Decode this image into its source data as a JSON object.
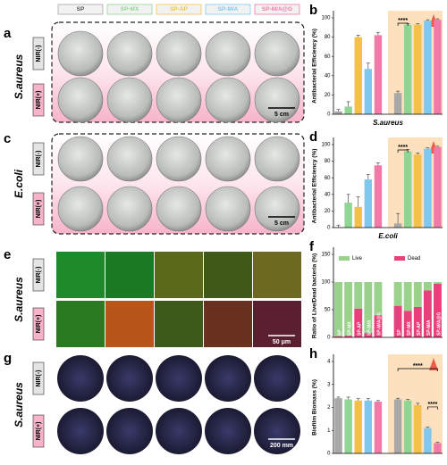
{
  "groups": [
    "SP",
    "SP-MX",
    "SP-AP",
    "SP-M/A",
    "SP-M/A@G"
  ],
  "panels": [
    {
      "label": "a",
      "species": "S.aureus",
      "rows": [
        "NIR(-)",
        "NIR(+)"
      ],
      "scale_bar": "5 cm"
    },
    {
      "label": "c",
      "species": "E.coli",
      "rows": [
        "NIR(-)",
        "NIR(+)"
      ],
      "scale_bar": "5 cm"
    },
    {
      "label": "e",
      "species": "S.aureus",
      "rows": [
        "NIR(-)",
        "NIR(+)"
      ],
      "scale_bar": "50 μm"
    },
    {
      "label": "g",
      "species": "S.aureus",
      "rows": [
        "NIR(-)",
        "NIR(+)"
      ],
      "scale_bar": "200 mm"
    }
  ],
  "chart_data": [
    {
      "label": "b",
      "type": "bar",
      "ylabel": "Antibacterial Efficiency (%)",
      "xlabel": "S.aureus",
      "categories": [
        null,
        null,
        null,
        null,
        null,
        null,
        null,
        null,
        null,
        null
      ],
      "values": [
        3,
        8,
        80,
        47,
        82,
        22,
        93,
        93,
        97,
        98
      ],
      "errors": [
        2,
        5,
        2,
        6,
        3,
        2,
        1,
        1,
        1,
        1
      ],
      "colors": [
        "#a8a8a8",
        "#8fd694",
        "#f5c04a",
        "#7ec8f0",
        "#f07aa8",
        "#a8a8a8",
        "#8fd694",
        "#f5c04a",
        "#7ec8f0",
        "#f07aa8"
      ],
      "ylim": [
        0,
        100
      ],
      "yticks": [
        0,
        20,
        40,
        60,
        80,
        100
      ],
      "annotations": [
        "****"
      ]
    },
    {
      "label": "d",
      "type": "bar",
      "ylabel": "Antibacterial Efficiency (%)",
      "xlabel": "E.coli",
      "categories": [
        null,
        null,
        null,
        null,
        null,
        null,
        null,
        null,
        null,
        null
      ],
      "values": [
        0,
        30,
        25,
        58,
        75,
        5,
        92,
        88,
        95,
        97
      ],
      "errors": [
        3,
        10,
        12,
        6,
        3,
        12,
        2,
        2,
        1,
        1
      ],
      "colors": [
        "#a8a8a8",
        "#8fd694",
        "#f5c04a",
        "#7ec8f0",
        "#f07aa8",
        "#a8a8a8",
        "#8fd694",
        "#f5c04a",
        "#7ec8f0",
        "#f07aa8"
      ],
      "ylim": [
        0,
        100
      ],
      "yticks": [
        0,
        20,
        40,
        60,
        80,
        100
      ],
      "annotations": [
        "****"
      ]
    },
    {
      "label": "f",
      "type": "stacked_bar",
      "ylabel": "Ratio of Live/Dead bacteria (%)",
      "categories": [
        "SP",
        "SP-MX",
        "SP-AP",
        "SP-M/A",
        "SP-M/A@G",
        "SP",
        "SP-MX",
        "SP-AP",
        "SP-M/A",
        "SP-M/A@G"
      ],
      "series": [
        {
          "name": "Live",
          "color": "#9ad18b",
          "values": [
            98,
            97,
            48,
            92,
            60,
            43,
            52,
            45,
            15,
            3
          ]
        },
        {
          "name": "Dead",
          "color": "#e8407a",
          "values": [
            2,
            3,
            52,
            8,
            40,
            57,
            48,
            55,
            85,
            97
          ]
        }
      ],
      "ylim": [
        0,
        150
      ],
      "yticks": [
        0,
        50,
        100,
        150
      ],
      "legend": "top"
    },
    {
      "label": "h",
      "type": "bar",
      "ylabel": "Biofilm Biomass (%)",
      "categories": [
        null,
        null,
        null,
        null,
        null,
        null,
        null,
        null,
        null,
        null
      ],
      "values": [
        2.4,
        2.35,
        2.3,
        2.3,
        2.25,
        2.35,
        2.3,
        2.1,
        1.1,
        0.45
      ],
      "errors": [
        0.05,
        0.1,
        0.08,
        0.08,
        0.05,
        0.05,
        0.05,
        0.08,
        0.05,
        0.04
      ],
      "colors": [
        "#a8a8a8",
        "#8fd694",
        "#f5c04a",
        "#7ec8f0",
        "#f07aa8",
        "#a8a8a8",
        "#8fd694",
        "#f5c04a",
        "#7ec8f0",
        "#f07aa8"
      ],
      "ylim": [
        0,
        4
      ],
      "yticks": [
        0,
        1,
        2,
        3,
        4
      ],
      "annotations": [
        "****",
        "****"
      ]
    }
  ]
}
